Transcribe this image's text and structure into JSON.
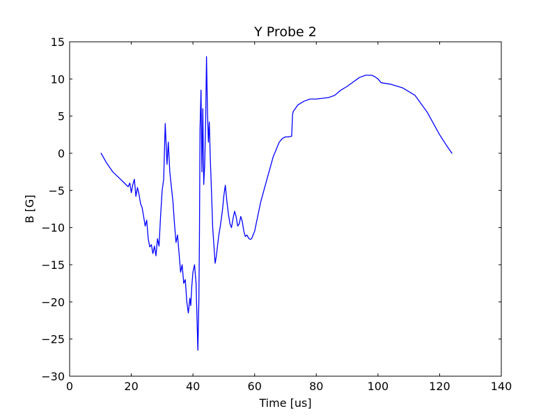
{
  "chart_data": {
    "type": "line",
    "title": "Y Probe 2",
    "xlabel": "Time [us]",
    "ylabel": "B [G]",
    "xlim": [
      0,
      140
    ],
    "ylim": [
      -30,
      15
    ],
    "xticks": [
      0,
      20,
      40,
      60,
      80,
      100,
      120,
      140
    ],
    "yticks": [
      -30,
      -25,
      -20,
      -15,
      -10,
      -5,
      0,
      5,
      10,
      15
    ],
    "xtick_labels": [
      "0",
      "20",
      "40",
      "60",
      "80",
      "100",
      "120",
      "140"
    ],
    "ytick_labels": [
      "−30",
      "−25",
      "−20",
      "−15",
      "−10",
      "−5",
      "0",
      "5",
      "10",
      "15"
    ],
    "grid": false,
    "legend": "none",
    "color": "#0000ff",
    "series": [
      {
        "x": [
          10.2,
          12,
          14,
          16,
          17.5,
          18.5,
          19,
          19.5,
          20,
          20.5,
          21,
          21.5,
          22,
          22.5,
          23,
          23.5,
          24,
          24.5,
          25,
          25.5,
          26,
          26.5,
          27,
          27.5,
          28,
          28.5,
          29,
          29.5,
          30,
          30.5,
          31,
          31.3,
          31.6,
          32,
          32.5,
          33,
          33.5,
          34,
          34.5,
          35,
          35.5,
          36,
          36.5,
          37,
          37.5,
          38,
          38.5,
          39,
          39.3,
          39.6,
          40,
          40.5,
          41,
          41.3,
          41.6,
          41.9,
          42.1,
          42.3,
          42.6,
          42.9,
          43.2,
          43.5,
          43.8,
          44.1,
          44.4,
          44.7,
          45,
          45.3,
          45.6,
          46,
          46.4,
          46.8,
          47.2,
          47.6,
          48,
          48.4,
          48.8,
          49.2,
          49.6,
          50,
          50.5,
          51,
          51.5,
          52,
          52.5,
          53,
          53.5,
          54,
          54.5,
          55,
          55.5,
          56,
          56.5,
          57,
          57.5,
          58,
          58.5,
          59,
          59.5,
          60,
          61,
          62,
          64,
          66,
          68,
          69,
          70,
          71,
          72,
          72.3,
          72.5,
          74,
          76,
          78,
          80,
          82,
          84,
          86,
          88,
          90,
          92,
          94,
          96,
          98,
          99,
          100,
          101,
          104,
          108,
          112,
          116,
          120,
          122,
          124
        ],
        "values": [
          0,
          -1.3,
          -2.5,
          -3.3,
          -3.9,
          -4.3,
          -4.5,
          -4,
          -5.3,
          -4.2,
          -3.5,
          -5.8,
          -4.6,
          -5.5,
          -6.8,
          -7.3,
          -8.5,
          -9.8,
          -9,
          -11.5,
          -12.6,
          -12.3,
          -13.5,
          -12.5,
          -13.8,
          -11.5,
          -12.5,
          -8.5,
          -5,
          -3.5,
          4,
          1.2,
          -1.5,
          1.5,
          -2.5,
          -4.5,
          -6.5,
          -9.5,
          -12,
          -11,
          -13.5,
          -16,
          -15,
          -17.5,
          -17,
          -20,
          -21.5,
          -19.5,
          -20.5,
          -18,
          -16,
          -15,
          -17.5,
          -22,
          -26.5,
          -20,
          -12,
          3.2,
          8.5,
          -2.5,
          6,
          -4.2,
          -1.5,
          3.8,
          13,
          5.5,
          1.5,
          4.2,
          -0.3,
          -5,
          -10,
          -12.5,
          -14.8,
          -13.8,
          -12.3,
          -11,
          -10,
          -8.8,
          -7.5,
          -5.8,
          -4.3,
          -6.5,
          -8.2,
          -9.5,
          -10,
          -8.8,
          -7.8,
          -8.5,
          -9.8,
          -9.5,
          -8.5,
          -9.2,
          -10.5,
          -11.2,
          -11,
          -11.4,
          -11.6,
          -11.5,
          -11,
          -10.5,
          -8.5,
          -6.5,
          -3.5,
          -0.5,
          1.5,
          2,
          2.2,
          2.2,
          2.3,
          5.2,
          5.6,
          6.5,
          7,
          7.3,
          7.3,
          7.4,
          7.5,
          7.8,
          8.5,
          9,
          9.6,
          10.2,
          10.5,
          10.5,
          10.3,
          10,
          9.5,
          9.3,
          8.8,
          7.8,
          5.5,
          2.5,
          1.2,
          0
        ]
      }
    ]
  }
}
